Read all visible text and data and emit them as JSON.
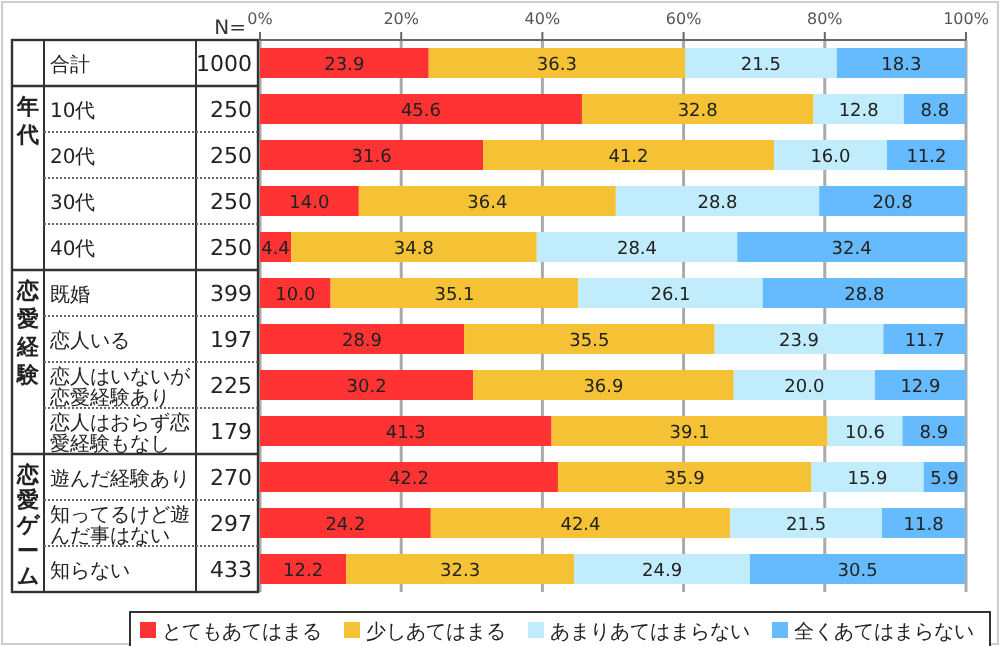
{
  "chart_data": {
    "type": "bar",
    "orientation": "horizontal",
    "stacked": true,
    "grid": "x",
    "legend": "bottom",
    "categories": [
      "合計",
      "10代",
      "20代",
      "30代",
      "40代",
      "既婚",
      "恋人いる",
      "恋人はいないが恋愛経験あり",
      "恋人はおらず恋愛経験もなし",
      "遊んだ経験あり",
      "知ってるけど遊んだ事はない",
      "知らない"
    ],
    "series": [
      {
        "name": "とてもあてはまる",
        "color": "#ff3333",
        "values": [
          23.9,
          45.6,
          31.6,
          14.0,
          4.4,
          10.0,
          28.9,
          30.2,
          41.3,
          42.2,
          24.2,
          12.2
        ],
        "value_labels": [
          "23.9",
          "45.6",
          "31.6",
          "14.0",
          "4.4",
          "10.0",
          "28.9",
          "30.2",
          "41.3",
          "42.2",
          "24.2",
          "12.2"
        ]
      },
      {
        "name": "少しあてはまる",
        "color": "#f5c236",
        "values": [
          36.3,
          32.8,
          41.2,
          36.4,
          34.8,
          35.1,
          35.5,
          36.9,
          39.1,
          35.9,
          42.4,
          32.3
        ],
        "value_labels": [
          "36.3",
          "32.8",
          "41.2",
          "36.4",
          "34.8",
          "35.1",
          "35.5",
          "36.9",
          "39.1",
          "35.9",
          "42.4",
          "32.3"
        ]
      },
      {
        "name": "あまりあてはまらない",
        "color": "#c0ecfb",
        "values": [
          21.5,
          12.8,
          16.0,
          28.8,
          28.4,
          26.1,
          23.9,
          20.0,
          10.6,
          15.9,
          21.5,
          24.9
        ],
        "value_labels": [
          "21.5",
          "12.8",
          "16.0",
          "28.8",
          "28.4",
          "26.1",
          "23.9",
          "20.0",
          "10.6",
          "15.9",
          "21.5",
          "24.9"
        ]
      },
      {
        "name": "全くあてはまらない",
        "color": "#66bbff",
        "values": [
          18.3,
          8.8,
          11.2,
          20.8,
          32.4,
          28.8,
          11.7,
          12.9,
          8.9,
          5.9,
          11.8,
          30.5
        ],
        "value_labels": [
          "18.3",
          "8.8",
          "11.2",
          "20.8",
          "32.4",
          "28.8",
          "11.7",
          "12.9",
          "8.9",
          "5.9",
          "11.8",
          "30.5"
        ]
      }
    ],
    "xlim": [
      0,
      100
    ],
    "xticks": [
      {
        "value": 0,
        "label": "0%"
      },
      {
        "value": 20,
        "label": "20%"
      },
      {
        "value": 40,
        "label": "40%"
      },
      {
        "value": 60,
        "label": "60%"
      },
      {
        "value": 80,
        "label": "80%"
      },
      {
        "value": 100,
        "label": "100%"
      }
    ],
    "annotations": [
      "N=",
      "年代",
      "恋愛経験",
      "恋愛ゲーム",
      "1000",
      "250",
      "250",
      "250",
      "250",
      "399",
      "197",
      "225",
      "179",
      "270",
      "297",
      "433"
    ]
  }
}
